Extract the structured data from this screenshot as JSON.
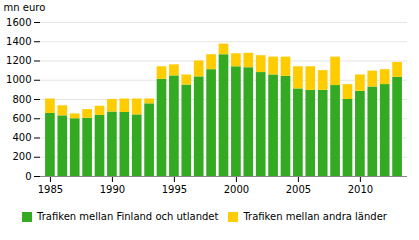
{
  "chart_data": {
    "type": "bar",
    "stacked": true,
    "x": [
      1985,
      1986,
      1987,
      1988,
      1989,
      1990,
      1991,
      1992,
      1993,
      1994,
      1995,
      1996,
      1997,
      1998,
      1999,
      2000,
      2001,
      2002,
      2003,
      2004,
      2005,
      2006,
      2007,
      2008,
      2009,
      2010,
      2011,
      2012,
      2013
    ],
    "series": [
      {
        "name": "Trafiken mellan Finland och utlandet",
        "color": "#33aa22",
        "values": [
          655,
          630,
          600,
          605,
          635,
          670,
          665,
          640,
          755,
          1010,
          1045,
          950,
          1035,
          1110,
          1265,
          1140,
          1130,
          1080,
          1055,
          1040,
          910,
          895,
          895,
          945,
          800,
          885,
          930,
          955,
          1030
        ]
      },
      {
        "name": "Trafiken mellan andra länder",
        "color": "#ffcc00",
        "values": [
          150,
          105,
          50,
          90,
          95,
          130,
          140,
          165,
          50,
          130,
          115,
          105,
          165,
          155,
          110,
          135,
          150,
          175,
          185,
          200,
          230,
          245,
          205,
          295,
          155,
          170,
          165,
          155,
          155
        ]
      }
    ],
    "y_label": "mn euro",
    "ylim": [
      0,
      1600
    ],
    "yticks": [
      0,
      200,
      400,
      600,
      800,
      1000,
      1200,
      1400,
      1600
    ],
    "xlim": [
      1984.2,
      2013.8
    ],
    "xticks": [
      1985,
      1990,
      1995,
      2000,
      2005,
      2010
    ],
    "grid": true,
    "legend": "bottom"
  }
}
